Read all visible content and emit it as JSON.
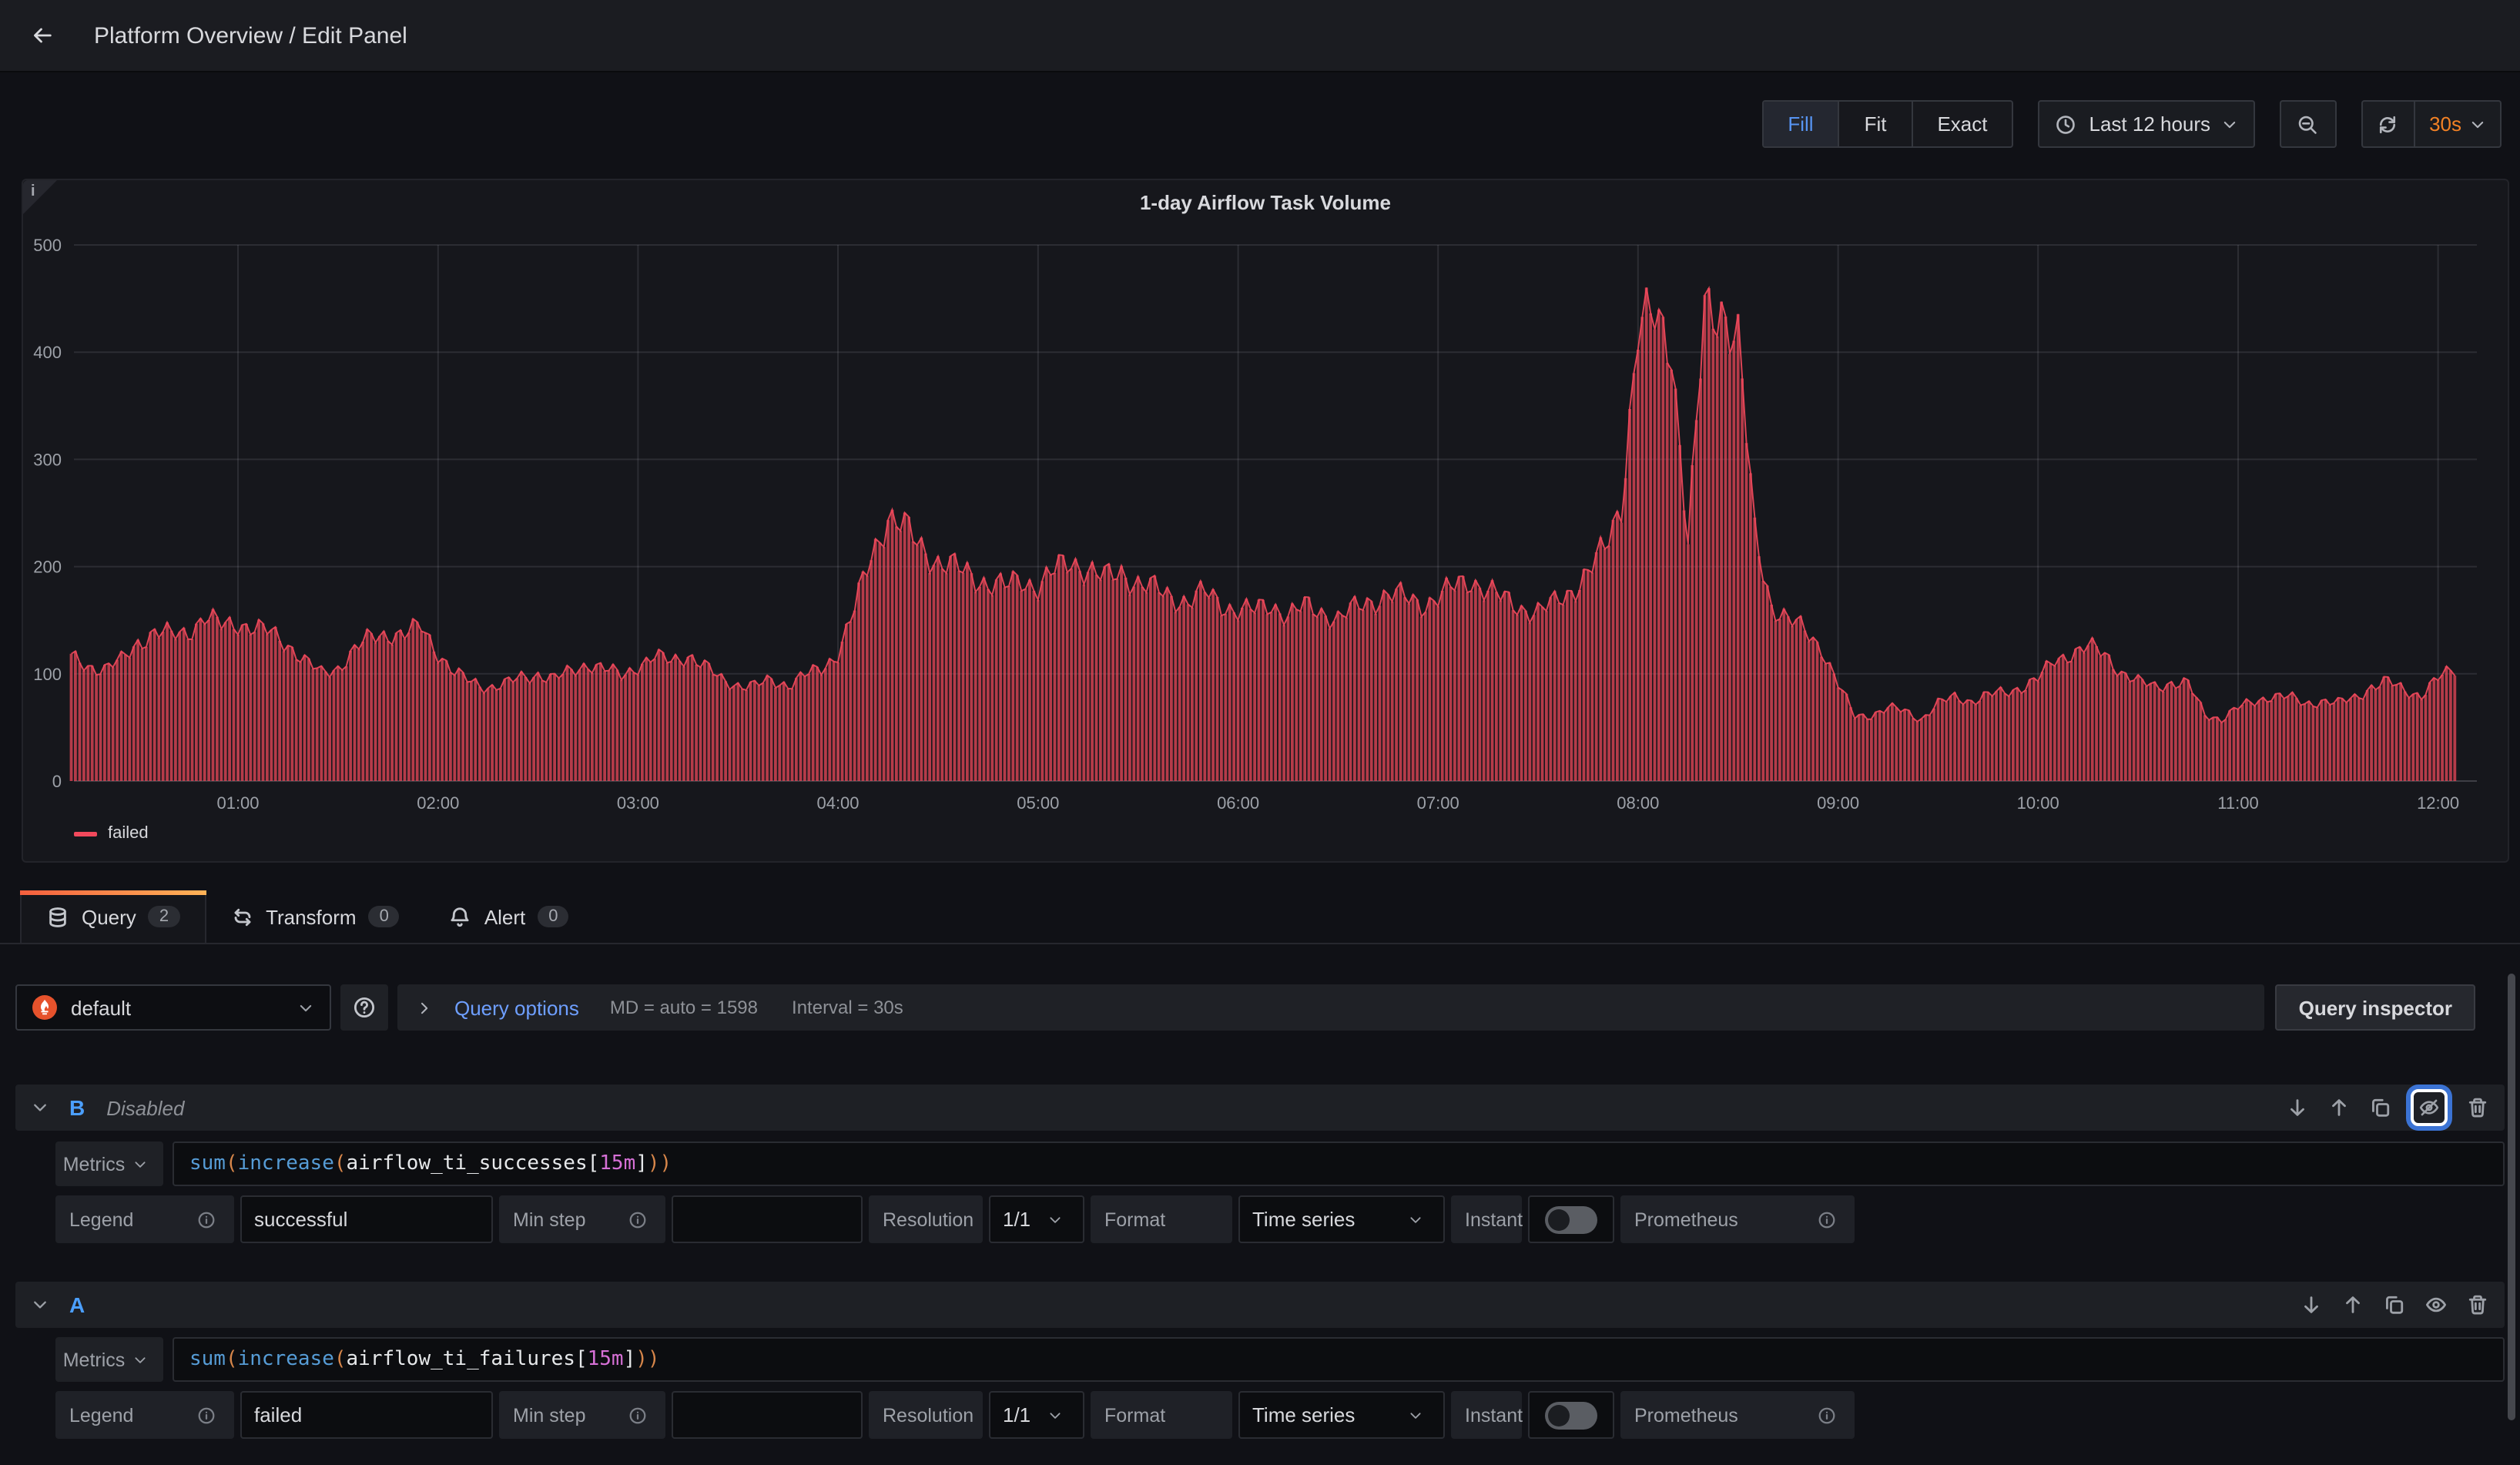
{
  "topbar": {
    "title": "Platform Overview / Edit Panel"
  },
  "toolbar": {
    "fill": "Fill",
    "fit": "Fit",
    "exact": "Exact",
    "time_range": "Last 12 hours",
    "refresh_interval": "30s"
  },
  "panel": {
    "title": "1-day Airflow Task Volume",
    "legend": "failed",
    "info_corner": "i"
  },
  "chart_data": {
    "type": "bar",
    "title": "1-day Airflow Task Volume",
    "series_name": "failed",
    "color": "#F2495C",
    "x_start": "00:10",
    "step_minutes": 5,
    "x_tick_labels": [
      "01:00",
      "02:00",
      "03:00",
      "04:00",
      "05:00",
      "06:00",
      "07:00",
      "08:00",
      "09:00",
      "10:00",
      "11:00",
      "12:00"
    ],
    "y_ticks": [
      0,
      100,
      200,
      300,
      400,
      500
    ],
    "ylim": [
      0,
      500
    ],
    "grid": true,
    "legend_position": "bottom-left",
    "values": [
      115,
      108,
      104,
      112,
      130,
      138,
      136,
      140,
      152,
      145,
      148,
      142,
      138,
      128,
      112,
      100,
      106,
      122,
      134,
      138,
      136,
      144,
      120,
      100,
      92,
      88,
      90,
      96,
      100,
      95,
      102,
      110,
      104,
      98,
      108,
      115,
      112,
      118,
      106,
      95,
      90,
      88,
      94,
      90,
      98,
      104,
      120,
      160,
      210,
      248,
      235,
      218,
      205,
      198,
      192,
      185,
      180,
      188,
      182,
      195,
      205,
      198,
      188,
      195,
      185,
      178,
      172,
      168,
      175,
      165,
      160,
      158,
      165,
      155,
      162,
      158,
      152,
      160,
      168,
      175,
      170,
      165,
      172,
      180,
      188,
      178,
      168,
      162,
      158,
      165,
      178,
      195,
      215,
      260,
      420,
      430,
      410,
      220,
      435,
      445,
      410,
      230,
      165,
      150,
      140,
      125,
      90,
      60,
      62,
      68,
      65,
      58,
      72,
      78,
      75,
      80,
      82,
      88,
      95,
      112,
      120,
      125,
      118,
      102,
      92,
      88,
      92,
      90,
      62,
      58,
      68,
      74,
      80,
      78,
      72,
      75,
      72,
      78,
      88,
      92,
      85,
      80,
      95,
      105
    ]
  },
  "tabs": [
    {
      "label": "Query",
      "count": "2"
    },
    {
      "label": "Transform",
      "count": "0"
    },
    {
      "label": "Alert",
      "count": "0"
    }
  ],
  "datasource_row": {
    "datasource": "default",
    "query_options_label": "Query options",
    "summary_md": "MD = auto = 1598",
    "summary_interval": "Interval = 30s",
    "inspector_button": "Query inspector"
  },
  "queries": [
    {
      "ref": "B",
      "status": "Disabled",
      "metrics_label": "Metrics",
      "expr_tokens": [
        {
          "t": "sum",
          "c": "fn"
        },
        {
          "t": "(",
          "c": "paren"
        },
        {
          "t": "increase",
          "c": "fn"
        },
        {
          "t": "(",
          "c": "paren"
        },
        {
          "t": "airflow_ti_successes",
          "c": "metric"
        },
        {
          "t": "[",
          "c": "bracket"
        },
        {
          "t": "15m",
          "c": "duration"
        },
        {
          "t": "]",
          "c": "bracket"
        },
        {
          "t": "))",
          "c": "paren"
        }
      ],
      "legend_label": "Legend",
      "legend_value": "successful",
      "min_step_label": "Min step",
      "min_step_value": "",
      "resolution_label": "Resolution",
      "resolution_value": "1/1",
      "format_label": "Format",
      "format_value": "Time series",
      "instant_label": "Instant",
      "datasource_hint": "Prometheus"
    },
    {
      "ref": "A",
      "status": "",
      "metrics_label": "Metrics",
      "expr_tokens": [
        {
          "t": "sum",
          "c": "fn"
        },
        {
          "t": "(",
          "c": "paren"
        },
        {
          "t": "increase",
          "c": "fn"
        },
        {
          "t": "(",
          "c": "paren"
        },
        {
          "t": "airflow_ti_failures",
          "c": "metric"
        },
        {
          "t": "[",
          "c": "bracket"
        },
        {
          "t": "15m",
          "c": "duration"
        },
        {
          "t": "]",
          "c": "bracket"
        },
        {
          "t": "))",
          "c": "paren"
        }
      ],
      "legend_label": "Legend",
      "legend_value": "failed",
      "min_step_label": "Min step",
      "min_step_value": "",
      "resolution_label": "Resolution",
      "resolution_value": "1/1",
      "format_label": "Format",
      "format_value": "Time series",
      "instant_label": "Instant",
      "datasource_hint": "Prometheus"
    }
  ],
  "colors": {
    "series_red": "#F2495C",
    "refresh_orange": "#f28125",
    "link_blue": "#6e9fff",
    "ref_id_blue": "#4b9fff",
    "active_blue": "#5794f2",
    "tab_gradient_start": "#f55f3e",
    "tab_gradient_end": "#ffb357",
    "syntax_function": "#569cd6",
    "syntax_paren": "#d7864a",
    "syntax_duration": "#d670d6"
  }
}
